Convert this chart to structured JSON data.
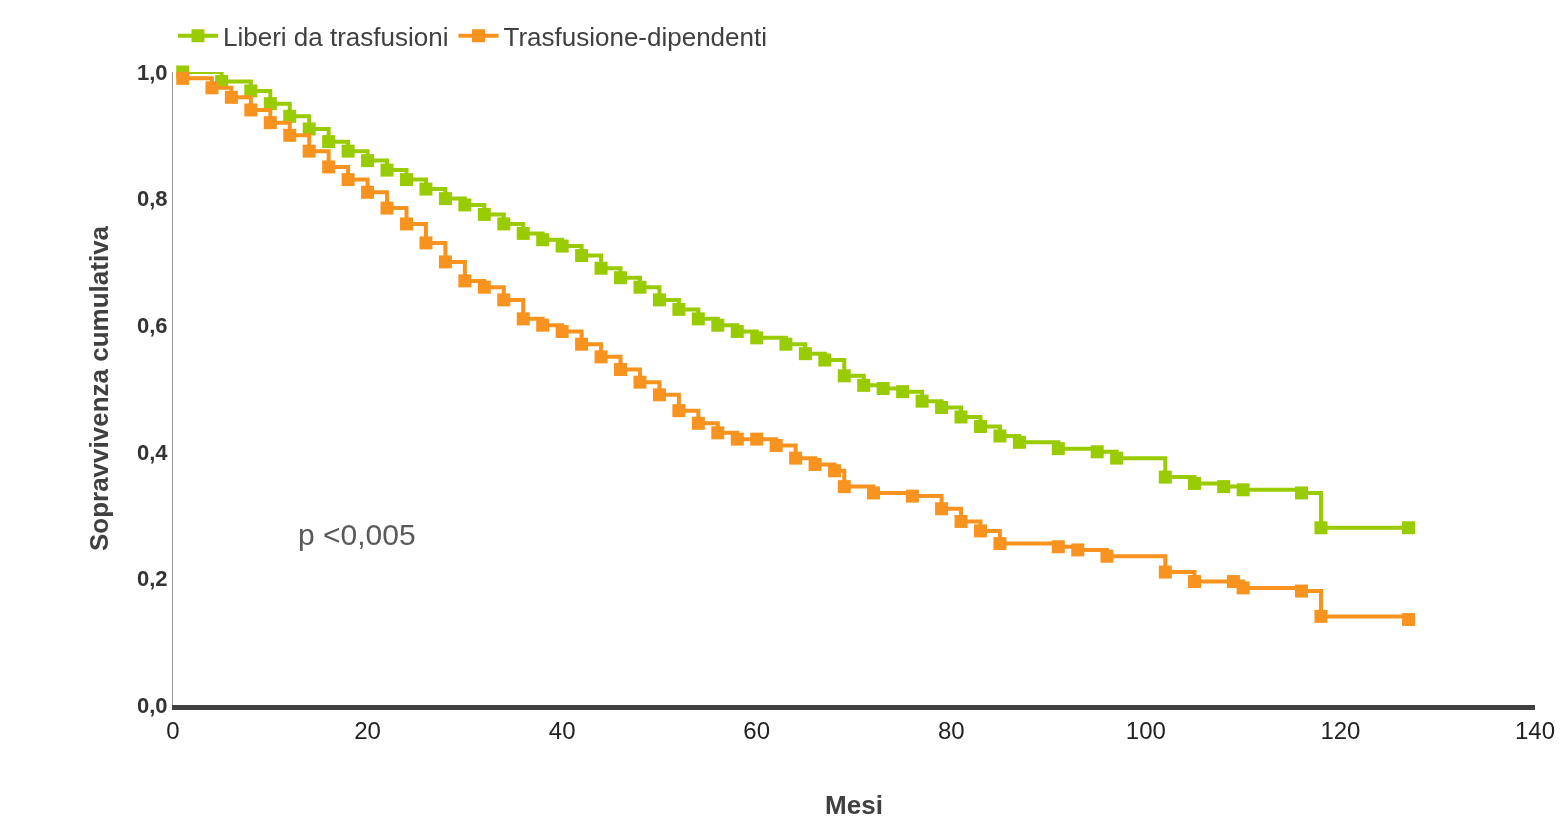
{
  "chart_data": {
    "type": "step",
    "xlabel": "Mesi",
    "ylabel": "Sopravvivenza cumulativa",
    "annotations": [
      "p <0,005"
    ],
    "xlim": [
      0,
      140
    ],
    "xticks": [
      0,
      20,
      40,
      60,
      80,
      100,
      120,
      140
    ],
    "ylim": [
      0,
      1
    ],
    "yticks": [
      {
        "value": 0,
        "label": "0,0"
      },
      {
        "value": 0.2,
        "label": "0,2"
      },
      {
        "value": 0.4,
        "label": "0,4"
      },
      {
        "value": 0.6,
        "label": "0,6"
      },
      {
        "value": 0.8,
        "label": "0,8"
      },
      {
        "value": 1,
        "label": "1,0"
      }
    ],
    "legend": "top left",
    "marker": "square",
    "line_style": "solid",
    "series": [
      {
        "name": "Liberi da trasfusioni",
        "color": "#99cc00",
        "x": [
          1,
          5,
          8,
          10,
          12,
          14,
          16,
          18,
          20,
          22,
          24,
          26,
          28,
          30,
          32,
          34,
          36,
          38,
          40,
          42,
          44,
          46,
          48,
          50,
          52,
          54,
          56,
          58,
          60,
          63,
          65,
          67,
          69,
          71,
          73,
          75,
          77,
          79,
          81,
          83,
          85,
          87,
          91,
          95,
          97,
          102,
          105,
          108,
          110,
          116,
          118,
          127
        ],
        "values": [
          1.0,
          0.985,
          0.97,
          0.95,
          0.93,
          0.91,
          0.89,
          0.875,
          0.86,
          0.845,
          0.83,
          0.815,
          0.8,
          0.79,
          0.775,
          0.76,
          0.745,
          0.735,
          0.725,
          0.71,
          0.69,
          0.675,
          0.66,
          0.64,
          0.625,
          0.61,
          0.6,
          0.59,
          0.58,
          0.57,
          0.555,
          0.545,
          0.52,
          0.505,
          0.5,
          0.495,
          0.48,
          0.47,
          0.455,
          0.44,
          0.425,
          0.415,
          0.405,
          0.4,
          0.39,
          0.36,
          0.35,
          0.345,
          0.34,
          0.335,
          0.28,
          0.28
        ]
      },
      {
        "name": "Trasfusione-dipendenti",
        "color": "#f7931e",
        "x": [
          1,
          4,
          6,
          8,
          10,
          12,
          14,
          16,
          18,
          20,
          22,
          24,
          26,
          28,
          30,
          32,
          34,
          36,
          38,
          40,
          42,
          44,
          46,
          48,
          50,
          52,
          54,
          56,
          58,
          60,
          62,
          64,
          66,
          68,
          69,
          72,
          76,
          79,
          81,
          83,
          85,
          91,
          93,
          96,
          102,
          105,
          109,
          110,
          116,
          118,
          127
        ],
        "values": [
          0.99,
          0.975,
          0.96,
          0.94,
          0.92,
          0.9,
          0.875,
          0.85,
          0.83,
          0.81,
          0.785,
          0.76,
          0.73,
          0.7,
          0.67,
          0.66,
          0.64,
          0.61,
          0.6,
          0.59,
          0.57,
          0.55,
          0.53,
          0.51,
          0.49,
          0.465,
          0.445,
          0.43,
          0.42,
          0.42,
          0.41,
          0.39,
          0.38,
          0.37,
          0.345,
          0.335,
          0.33,
          0.31,
          0.29,
          0.275,
          0.255,
          0.25,
          0.245,
          0.235,
          0.21,
          0.195,
          0.195,
          0.185,
          0.18,
          0.14,
          0.135
        ]
      }
    ]
  }
}
